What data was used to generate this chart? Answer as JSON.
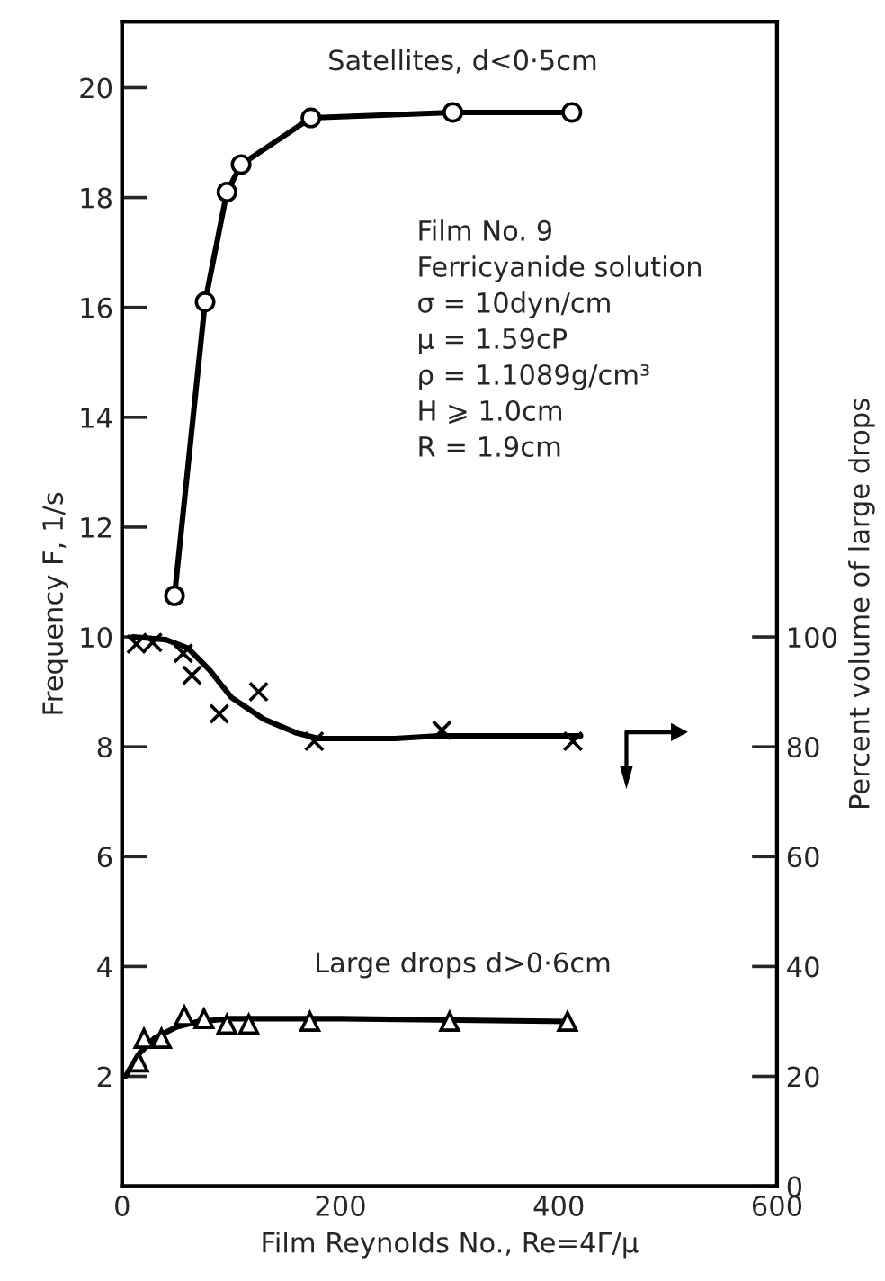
{
  "chart_data": {
    "type": "scatter",
    "xlabel": "Film Reynolds No., Re=4Γ/μ",
    "ylabel": "Frequency F, 1/s",
    "y2label": "Percent volume of large drops",
    "xlim": [
      0,
      600
    ],
    "xticks": [
      0,
      200,
      400,
      600
    ],
    "ylim": [
      0,
      21.2
    ],
    "yticks": [
      2,
      4,
      6,
      8,
      10,
      12,
      14,
      16,
      18,
      20
    ],
    "y2lim": [
      0,
      212
    ],
    "y2ticks": [
      0,
      20,
      40,
      60,
      80,
      100
    ],
    "grid": false,
    "legend": false,
    "series": [
      {
        "type": "line",
        "marker": "circle",
        "color": "#000000",
        "x": [
          48,
          76,
          96,
          109,
          173,
          303,
          412
        ],
        "values": [
          10.75,
          16.1,
          18.1,
          18.6,
          19.45,
          19.55,
          19.55
        ]
      },
      {
        "marker": "cross",
        "axis": "y2",
        "color": "#000000",
        "x": [
          13,
          28,
          56,
          64,
          89,
          125,
          176,
          293,
          413
        ],
        "values": [
          98.7,
          99,
          97,
          93,
          86,
          90,
          81,
          83,
          81
        ]
      },
      {
        "type": "line",
        "marker": "none",
        "axis": "y2",
        "color": "#000000",
        "x": [
          10,
          40,
          60,
          80,
          100,
          130,
          160,
          180,
          250,
          290,
          420
        ],
        "values": [
          100,
          99.5,
          98,
          94,
          89,
          85,
          82.5,
          81.5,
          81.5,
          82,
          82
        ]
      },
      {
        "marker": "triangle",
        "color": "#000000",
        "x": [
          15,
          20,
          36,
          57,
          75,
          96,
          116,
          172,
          300,
          408
        ],
        "values": [
          2.26,
          2.69,
          2.69,
          3.1,
          3.05,
          2.95,
          2.95,
          3.0,
          3.0,
          3.0
        ]
      },
      {
        "type": "line",
        "marker": "none",
        "color": "#000000",
        "x": [
          3,
          15,
          30,
          50,
          70,
          100,
          200,
          410
        ],
        "values": [
          2.0,
          2.4,
          2.7,
          2.9,
          3.0,
          3.05,
          3.05,
          3.0
        ]
      }
    ],
    "annotations": [
      "Satellites, d<0·5cm",
      "Large drops d>0·6cm",
      "Film No. 9\nFerricyanide solution\nσ = 10dyn/cm\nμ = 1.59cP\nρ = 1.1089g/cm³\nH ⩾ 1.0cm\nR = 1.9cm"
    ]
  }
}
